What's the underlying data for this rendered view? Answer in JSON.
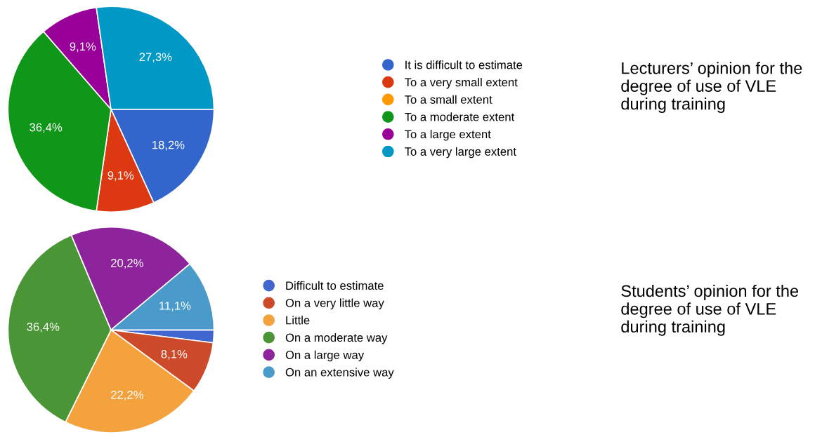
{
  "chart_data": [
    {
      "type": "pie",
      "categories": [
        "It is difficult to estimate",
        "To a very small extent",
        "To a small extent",
        "To a moderate extent",
        "To a large extent",
        "To a very large extent"
      ],
      "values": [
        18.2,
        9.1,
        0,
        36.4,
        9.1,
        27.3
      ],
      "value_labels": [
        "18,2%",
        "9,1%",
        null,
        "36,4%",
        "9,1%",
        "27,3%"
      ],
      "colors": [
        "#3366cc",
        "#dc3912",
        "#ff9900",
        "#109618",
        "#990099",
        "#0099c6"
      ],
      "legend": "right",
      "annotations": [
        "Lecturers’ opinion for the degree of use of VLE during training"
      ]
    },
    {
      "type": "pie",
      "categories": [
        "Difficult to estimate",
        "On a very little way",
        "Little",
        "On a moderate way",
        "On a large way",
        "On an extensive way"
      ],
      "values": [
        2.0,
        8.1,
        22.2,
        36.4,
        20.2,
        11.1
      ],
      "value_labels": [
        null,
        "8,1%",
        "22,2%",
        "36,4%",
        "20,2%",
        "11,1%"
      ],
      "colors": [
        "#3f67cf",
        "#cc4a2a",
        "#f3a23d",
        "#4a9536",
        "#8e249b",
        "#4a9bc9"
      ],
      "legend": "right",
      "annotations": [
        "Students’ opinion for the degree of use of VLE during training"
      ]
    }
  ]
}
